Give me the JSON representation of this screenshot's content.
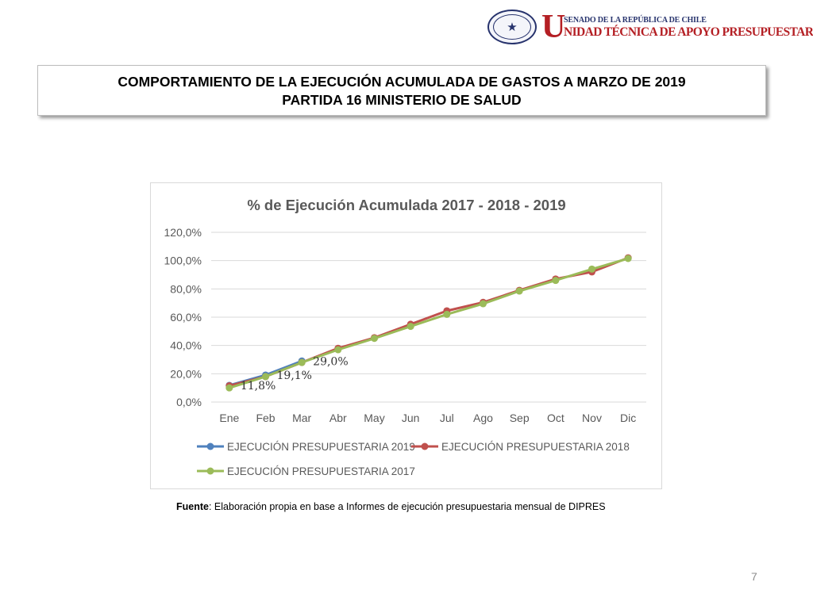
{
  "header": {
    "logo_line1": "SENADO DE LA REPÚBLICA DE CHILE",
    "logo_initial": "U",
    "logo_line2": "NIDAD TÉCNICA DE APOYO PRESUPUESTARIO",
    "seal_icon": "senado-seal-icon"
  },
  "title": {
    "line1": "COMPORTAMIENTO DE LA EJECUCIÓN ACUMULADA DE GASTOS A MARZO DE 2019",
    "line2": "PARTIDA 16 MINISTERIO DE SALUD"
  },
  "chart_data": {
    "type": "line",
    "title": "% de Ejecución Acumulada 2017 - 2018 - 2019",
    "categories": [
      "Ene",
      "Feb",
      "Mar",
      "Abr",
      "May",
      "Jun",
      "Jul",
      "Ago",
      "Sep",
      "Oct",
      "Nov",
      "Dic"
    ],
    "ylim": [
      0,
      120
    ],
    "yticks": [
      "0,0%",
      "20,0%",
      "40,0%",
      "60,0%",
      "80,0%",
      "100,0%",
      "120,0%"
    ],
    "ytick_values": [
      0,
      20,
      40,
      60,
      80,
      100,
      120
    ],
    "grid": true,
    "legend_position": "bottom",
    "series": [
      {
        "name": "EJECUCIÓN PRESUPUESTARIA 2019",
        "color": "#4f81bd",
        "values": [
          11.8,
          19.1,
          29.0,
          null,
          null,
          null,
          null,
          null,
          null,
          null,
          null,
          null
        ],
        "data_labels": [
          "11,8%",
          "19,1%",
          "29,0%"
        ]
      },
      {
        "name": "EJECUCIÓN PRESUPUESTARIA 2018",
        "color": "#c0504d",
        "values": [
          11.5,
          18.0,
          28.0,
          38.0,
          45.5,
          55.0,
          64.5,
          70.5,
          79.0,
          87.0,
          92.0,
          102.0
        ]
      },
      {
        "name": "EJECUCIÓN PRESUPUESTARIA 2017",
        "color": "#9bbb59",
        "values": [
          10.0,
          18.0,
          28.0,
          37.0,
          45.0,
          53.5,
          62.0,
          69.5,
          78.5,
          86.0,
          94.0,
          101.5
        ]
      }
    ]
  },
  "footer": {
    "source_label": "Fuente",
    "source_text": ": Elaboración propia en base  a Informes de ejecución presupuestaria mensual de DIPRES",
    "page_number": "7"
  }
}
